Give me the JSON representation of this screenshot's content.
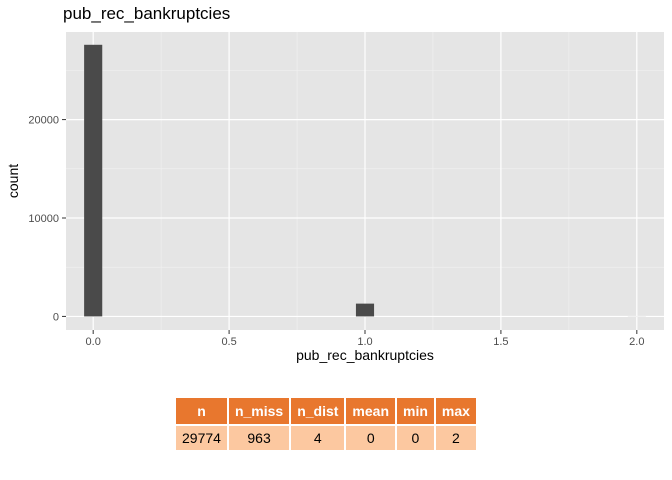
{
  "chart_data": {
    "type": "bar",
    "title": "pub_rec_bankruptcies",
    "xlabel": "pub_rec_bankruptcies",
    "ylabel": "count",
    "xlim": [
      -0.1,
      2.1
    ],
    "ylim": [
      -1380,
      28900
    ],
    "x_ticks": [
      0.0,
      0.5,
      1.0,
      1.5,
      2.0
    ],
    "x_tick_labels": [
      "0.0",
      "0.5",
      "1.0",
      "1.5",
      "2.0"
    ],
    "y_ticks": [
      0,
      10000,
      20000
    ],
    "y_tick_labels": [
      "0",
      "10000",
      "20000"
    ],
    "bin_width": 0.0667,
    "bars": [
      {
        "x": 0,
        "count": 27600
      },
      {
        "x": 1,
        "count": 1300
      },
      {
        "x": 2,
        "count": 8
      }
    ],
    "grid": true,
    "bar_color": "#4a4a4a",
    "panel_color": "#e5e5e5"
  },
  "summary_table": {
    "headers": [
      "n",
      "n_miss",
      "n_dist",
      "mean",
      "min",
      "max"
    ],
    "values": [
      "29774",
      "963",
      "4",
      "0",
      "0",
      "2"
    ]
  }
}
